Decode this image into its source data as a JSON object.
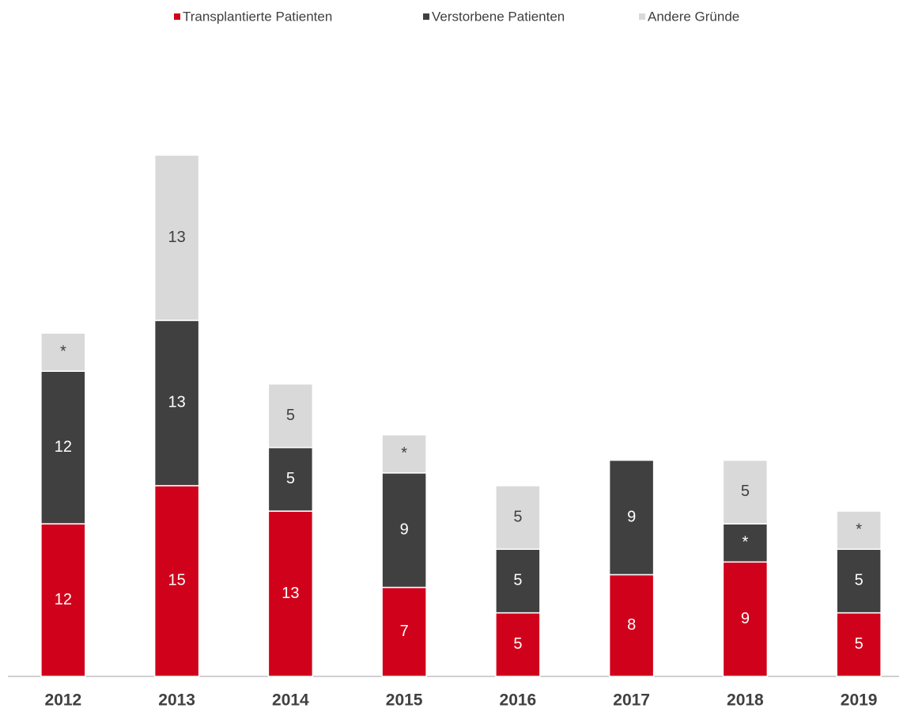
{
  "chart_data": {
    "type": "stacked_bar",
    "categories": [
      "2012",
      "2013",
      "2014",
      "2015",
      "2016",
      "2017",
      "2018",
      "2019"
    ],
    "series": [
      {
        "name": "Transplantierte Patienten",
        "color": "#d0021b",
        "values": [
          12,
          15,
          13,
          7,
          5,
          8,
          9,
          5
        ]
      },
      {
        "name": "Verstorbene Patienten",
        "color": "#404040",
        "values": [
          12,
          13,
          5,
          9,
          5,
          9,
          3,
          5
        ],
        "value_labels": [
          "12",
          "13",
          "5",
          "9",
          "5",
          "9",
          "*",
          "5"
        ]
      },
      {
        "name": "Andere Gründe",
        "color": "#d9d9d9",
        "values": [
          3,
          13,
          5,
          3,
          5,
          null,
          5,
          3
        ],
        "value_labels": [
          "*",
          "13",
          "5",
          "*",
          "5",
          null,
          "5",
          "*"
        ]
      }
    ],
    "legend": "top"
  }
}
